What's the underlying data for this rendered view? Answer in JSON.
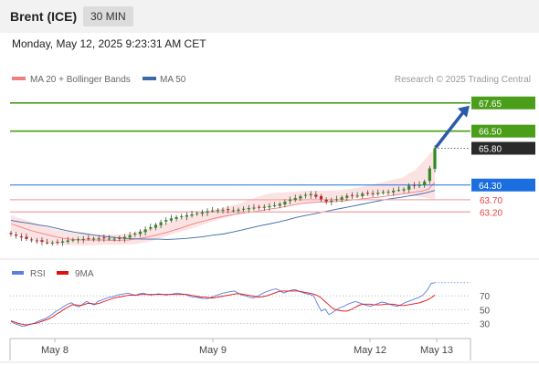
{
  "header": {
    "title": "Brent (ICE)",
    "timeframe": "30 MIN",
    "datetime": "Monday, May 12, 2025 9:23:31 AM CET"
  },
  "legend": {
    "ma20_label": "MA 20 + Bollinger Bands",
    "ma50_label": "MA 50",
    "credit": "Research © 2025 Trading Central"
  },
  "colors": {
    "resistance": "#4a9e1a",
    "pivot": "#1a6ee0",
    "support": "#e84040",
    "last": "#2a2a2a",
    "candle_up": "#2e8b1e",
    "candle_down": "#cc2020",
    "ma20": "#f08080",
    "ma50": "#3a6aa8",
    "bollinger_fill": "#fbdede",
    "rsi": "#5a7fe0",
    "rsi_ma": "#e01010",
    "arrow": "#2a5aa8"
  },
  "chart_data": [
    {
      "type": "candlestick",
      "title": "Brent (ICE) 30 MIN",
      "ylim": [
        61.5,
        68.2
      ],
      "y_tick_positions": [
        "right"
      ],
      "levels": [
        {
          "name": "resistance-2",
          "value": 67.65,
          "label": "67.65",
          "kind": "resistance"
        },
        {
          "name": "resistance-1",
          "value": 66.5,
          "label": "66.50",
          "kind": "resistance"
        },
        {
          "name": "last",
          "value": 65.8,
          "label": "65.80",
          "kind": "last"
        },
        {
          "name": "pivot",
          "value": 64.3,
          "label": "64.30",
          "kind": "pivot"
        },
        {
          "name": "support-1",
          "value": 63.7,
          "label": "63.70",
          "kind": "support"
        },
        {
          "name": "support-2",
          "value": 63.2,
          "label": "63.20",
          "kind": "support"
        }
      ],
      "x_labels": [
        "May 8",
        "May 9",
        "May 12",
        "May 13"
      ],
      "close": [
        62.3,
        62.23,
        62.16,
        62.1,
        62.06,
        62.02,
        61.98,
        61.95,
        61.95,
        61.97,
        62.0,
        62.04,
        62.07,
        62.09,
        62.1,
        62.11,
        62.12,
        62.13,
        62.13,
        62.12,
        62.11,
        62.12,
        62.18,
        62.25,
        62.32,
        62.4,
        62.49,
        62.58,
        62.68,
        62.78,
        62.87,
        62.94,
        62.99,
        63.03,
        63.07,
        63.11,
        63.15,
        63.19,
        63.23,
        63.26,
        63.28,
        63.29,
        63.28,
        63.27,
        63.3,
        63.33,
        63.36,
        63.38,
        63.39,
        63.41,
        63.44,
        63.47,
        63.53,
        63.62,
        63.71,
        63.77,
        63.84,
        63.9,
        63.93,
        63.82,
        63.72,
        63.63,
        63.66,
        63.72,
        63.8,
        63.86,
        63.87,
        63.87,
        63.95,
        63.98,
        63.95,
        63.98,
        64.02,
        64.02,
        64.07,
        64.1,
        64.13,
        64.27,
        64.28,
        64.31,
        64.44,
        64.98,
        65.8
      ],
      "ma20": [
        62.73,
        62.63,
        62.54,
        62.45,
        62.38,
        62.31,
        62.24,
        62.18,
        62.13,
        62.09,
        62.07,
        62.06,
        62.06,
        62.06,
        62.06,
        62.05,
        62.04,
        62.05,
        62.06,
        62.09,
        62.13,
        62.18,
        62.24,
        62.31,
        62.38,
        62.46,
        62.54,
        62.63,
        62.72,
        62.79,
        62.86,
        62.93,
        62.99,
        63.04,
        63.09,
        63.13,
        63.17,
        63.21,
        63.25,
        63.29,
        63.33,
        63.37,
        63.42,
        63.47,
        63.52,
        63.56,
        63.58,
        63.6,
        63.6,
        63.62,
        63.63,
        63.65,
        63.68,
        63.71,
        63.74,
        63.77,
        63.79,
        63.83,
        63.86,
        63.9,
        63.93,
        63.98,
        64.02,
        64.05,
        64.13,
        64.41
      ],
      "ma50": [
        62.86,
        62.79,
        62.74,
        62.67,
        62.62,
        62.53,
        62.44,
        62.37,
        62.32,
        62.26,
        62.21,
        62.17,
        62.14,
        62.11,
        62.1,
        62.09,
        62.09,
        62.08,
        62.1,
        62.12,
        62.16,
        62.2,
        62.26,
        62.3,
        62.38,
        62.46,
        62.55,
        62.64,
        62.71,
        62.79,
        62.88,
        62.98,
        63.06,
        63.13,
        63.21,
        63.29,
        63.36,
        63.43,
        63.51,
        63.59,
        63.66,
        63.73,
        63.78,
        63.84,
        63.9,
        63.98,
        64.08
      ],
      "bollinger_upper": [
        63.08,
        62.97,
        62.9,
        62.81,
        62.72,
        62.64,
        62.55,
        62.48,
        62.43,
        62.38,
        62.35,
        62.32,
        62.3,
        62.29,
        62.29,
        62.28,
        62.28,
        62.29,
        62.32,
        62.36,
        62.43,
        62.5,
        62.6,
        62.68,
        62.76,
        62.85,
        62.95,
        63.04,
        63.1,
        63.17,
        63.23,
        63.29,
        63.34,
        63.4,
        63.47,
        63.54,
        63.64,
        63.73,
        63.84,
        63.92,
        63.96,
        63.98,
        64.0,
        64.02,
        64.04,
        64.07,
        64.07,
        64.07,
        64.07,
        64.08,
        64.08,
        64.1,
        64.14,
        64.18,
        64.24,
        64.3,
        64.36,
        64.42,
        64.48,
        64.54,
        64.6,
        64.76,
        64.92,
        65.2,
        65.5,
        65.8
      ],
      "bollinger_lower": [
        62.4,
        62.31,
        62.21,
        62.12,
        62.04,
        61.98,
        61.94,
        61.9,
        61.87,
        61.85,
        61.84,
        61.83,
        61.84,
        61.85,
        61.86,
        61.86,
        61.86,
        61.87,
        61.88,
        61.89,
        61.93,
        61.98,
        62.06,
        62.14,
        62.23,
        62.32,
        62.4,
        62.48,
        62.56,
        62.65,
        62.74,
        62.82,
        62.9,
        62.98,
        63.06,
        63.14,
        63.21,
        63.27,
        63.32,
        63.37,
        63.41,
        63.45,
        63.48,
        63.5,
        63.52,
        63.54,
        63.56,
        63.58,
        63.59,
        63.62,
        63.66,
        63.7,
        63.74,
        63.78,
        63.82,
        63.86,
        63.9,
        63.93,
        63.94,
        63.93,
        63.92,
        63.9,
        63.86,
        63.81,
        63.76,
        63.7
      ],
      "target_arrow": {
        "from": 65.8,
        "to": 67.65
      }
    },
    {
      "type": "line",
      "title": "RSI",
      "ylim": [
        15,
        90
      ],
      "y_ticks": [
        70,
        50,
        30
      ],
      "x_labels": [
        "May 8",
        "May 9",
        "May 12",
        "May 13"
      ],
      "series": [
        {
          "name": "RSI",
          "values": [
            33,
            30,
            28,
            26,
            27,
            29,
            30,
            33,
            35,
            37,
            40,
            44,
            48,
            51,
            55,
            58,
            60,
            56,
            54,
            58,
            62,
            59,
            57,
            62,
            64,
            66,
            68,
            69,
            71,
            72,
            73,
            74,
            72,
            71,
            73,
            74,
            72,
            71,
            72,
            73,
            72,
            71,
            72,
            73,
            74,
            73,
            72,
            70,
            68,
            68,
            67,
            66,
            66,
            68,
            70,
            72,
            74,
            75,
            76,
            77,
            74,
            71,
            70,
            68,
            67,
            69,
            72,
            75,
            77,
            79,
            80,
            78,
            74,
            76,
            78,
            79,
            77,
            75,
            73,
            72,
            70,
            58,
            48,
            51,
            43,
            46,
            50,
            53,
            55,
            58,
            60,
            62,
            60,
            58,
            56,
            55,
            57,
            59,
            61,
            60,
            58,
            56,
            55,
            57,
            60,
            62,
            64,
            66,
            68,
            72,
            78,
            88,
            89
          ]
        },
        {
          "name": "9MA",
          "values": [
            34,
            32,
            30,
            29,
            28,
            29,
            30,
            31,
            33,
            35,
            37,
            40,
            44,
            47,
            51,
            54,
            57,
            57,
            56,
            57,
            59,
            59,
            58,
            59,
            61,
            63,
            65,
            67,
            68,
            69,
            70,
            71,
            71,
            71,
            72,
            72,
            72,
            72,
            72,
            72,
            72,
            72,
            72,
            72,
            72,
            72,
            72,
            71,
            70,
            69,
            68,
            68,
            67,
            67,
            68,
            69,
            70,
            71,
            72,
            73,
            73,
            72,
            71,
            70,
            69,
            68,
            69,
            70,
            72,
            74,
            76,
            77,
            77,
            77,
            77,
            77,
            76,
            75,
            74,
            73,
            71,
            68,
            63,
            58,
            53,
            50,
            49,
            48,
            48,
            50,
            53,
            56,
            58,
            58,
            58,
            57,
            57,
            57,
            58,
            58,
            58,
            57,
            56,
            56,
            57,
            58,
            59,
            60,
            62,
            64,
            67,
            71
          ]
        }
      ]
    }
  ]
}
